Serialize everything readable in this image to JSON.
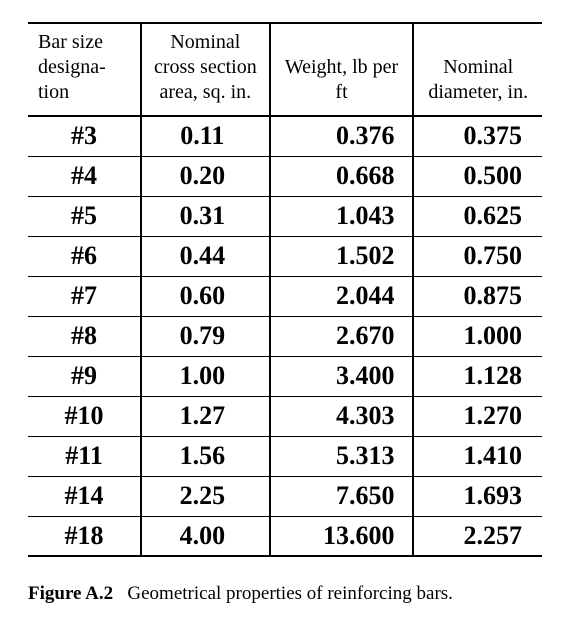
{
  "table": {
    "columns": [
      {
        "key": "bar",
        "header": "Bar size designa- tion",
        "align": "left"
      },
      {
        "key": "area",
        "header": "Nominal cross section area, sq. in.",
        "align": "center"
      },
      {
        "key": "wt",
        "header": "Weight, lb per ft",
        "align": "right"
      },
      {
        "key": "dia",
        "header": "Nominal diameter, in.",
        "align": "right"
      }
    ],
    "rows": [
      {
        "bar": "#3",
        "area": "0.11",
        "wt": "0.376",
        "dia": "0.375"
      },
      {
        "bar": "#4",
        "area": "0.20",
        "wt": "0.668",
        "dia": "0.500"
      },
      {
        "bar": "#5",
        "area": "0.31",
        "wt": "1.043",
        "dia": "0.625"
      },
      {
        "bar": "#6",
        "area": "0.44",
        "wt": "1.502",
        "dia": "0.750"
      },
      {
        "bar": "#7",
        "area": "0.60",
        "wt": "2.044",
        "dia": "0.875"
      },
      {
        "bar": "#8",
        "area": "0.79",
        "wt": "2.670",
        "dia": "1.000"
      },
      {
        "bar": "#9",
        "area": "1.00",
        "wt": "3.400",
        "dia": "1.128"
      },
      {
        "bar": "#10",
        "area": "1.27",
        "wt": "4.303",
        "dia": "1.270"
      },
      {
        "bar": "#11",
        "area": "1.56",
        "wt": "5.313",
        "dia": "1.410"
      },
      {
        "bar": "#14",
        "area": "2.25",
        "wt": "7.650",
        "dia": "1.693"
      },
      {
        "bar": "#18",
        "area": "4.00",
        "wt": "13.600",
        "dia": "2.257"
      }
    ],
    "border_color": "#000000",
    "header_font_size_pt": 15,
    "body_font_size_pt": 20,
    "body_font_weight": 700
  },
  "caption": {
    "label": "Figure A.2",
    "text": "Geometrical properties of reinforcing bars."
  }
}
